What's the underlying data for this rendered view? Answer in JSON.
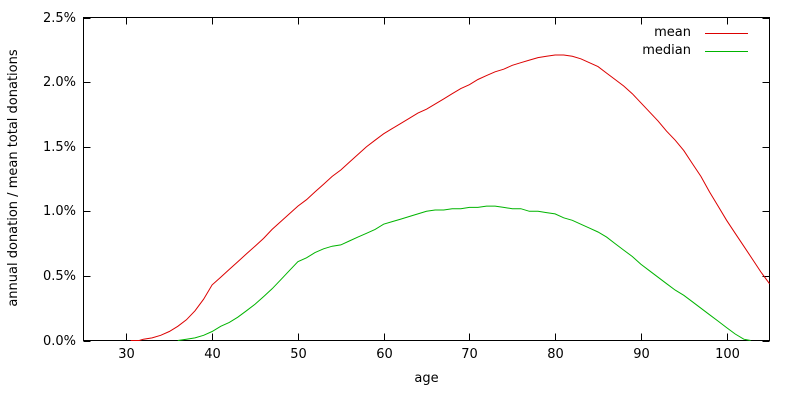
{
  "chart_data": {
    "type": "line",
    "title": "",
    "xlabel": "age",
    "ylabel": "annual donation / mean total donations",
    "xlim": [
      25,
      105
    ],
    "ylim": [
      0,
      2.5
    ],
    "grid": false,
    "legend_position": "top-right-inside",
    "x_tick_values": [
      30,
      40,
      50,
      60,
      70,
      80,
      90,
      100
    ],
    "x_tick_labels": [
      "30",
      "40",
      "50",
      "60",
      "70",
      "80",
      "90",
      "100"
    ],
    "y_tick_values": [
      0,
      0.5,
      1.0,
      1.5,
      2.0,
      2.5
    ],
    "y_tick_labels": [
      "0.0%",
      "0.5%",
      "1.0%",
      "1.5%",
      "2.0%",
      "2.5%"
    ],
    "axis_color": "#000000",
    "series": [
      {
        "name": "mean",
        "color": "#dc0000",
        "points": [
          [
            30.5,
            0.0
          ],
          [
            31.5,
            0.0
          ],
          [
            32,
            0.01
          ],
          [
            33,
            0.02
          ],
          [
            34,
            0.04
          ],
          [
            35,
            0.07
          ],
          [
            36,
            0.11
          ],
          [
            37,
            0.16
          ],
          [
            38,
            0.23
          ],
          [
            39,
            0.32
          ],
          [
            40,
            0.43
          ],
          [
            41,
            0.49
          ],
          [
            42,
            0.55
          ],
          [
            43,
            0.61
          ],
          [
            44,
            0.67
          ],
          [
            45,
            0.73
          ],
          [
            46,
            0.79
          ],
          [
            47,
            0.86
          ],
          [
            48,
            0.92
          ],
          [
            49,
            0.98
          ],
          [
            50,
            1.04
          ],
          [
            51,
            1.09
          ],
          [
            52,
            1.15
          ],
          [
            53,
            1.21
          ],
          [
            54,
            1.27
          ],
          [
            55,
            1.32
          ],
          [
            56,
            1.38
          ],
          [
            57,
            1.44
          ],
          [
            58,
            1.5
          ],
          [
            59,
            1.55
          ],
          [
            60,
            1.6
          ],
          [
            61,
            1.64
          ],
          [
            62,
            1.68
          ],
          [
            63,
            1.72
          ],
          [
            64,
            1.76
          ],
          [
            65,
            1.79
          ],
          [
            66,
            1.83
          ],
          [
            67,
            1.87
          ],
          [
            68,
            1.91
          ],
          [
            69,
            1.95
          ],
          [
            70,
            1.98
          ],
          [
            71,
            2.02
          ],
          [
            72,
            2.05
          ],
          [
            73,
            2.08
          ],
          [
            74,
            2.1
          ],
          [
            75,
            2.13
          ],
          [
            76,
            2.15
          ],
          [
            77,
            2.17
          ],
          [
            78,
            2.19
          ],
          [
            79,
            2.2
          ],
          [
            80,
            2.21
          ],
          [
            81,
            2.21
          ],
          [
            82,
            2.2
          ],
          [
            83,
            2.18
          ],
          [
            84,
            2.15
          ],
          [
            85,
            2.12
          ],
          [
            86,
            2.07
          ],
          [
            87,
            2.02
          ],
          [
            88,
            1.97
          ],
          [
            89,
            1.91
          ],
          [
            90,
            1.84
          ],
          [
            91,
            1.77
          ],
          [
            92,
            1.7
          ],
          [
            93,
            1.62
          ],
          [
            94,
            1.55
          ],
          [
            95,
            1.47
          ],
          [
            96,
            1.37
          ],
          [
            97,
            1.27
          ],
          [
            98,
            1.15
          ],
          [
            99,
            1.04
          ],
          [
            100,
            0.93
          ],
          [
            101,
            0.83
          ],
          [
            102,
            0.73
          ],
          [
            103,
            0.63
          ],
          [
            104,
            0.53
          ],
          [
            105,
            0.44
          ]
        ]
      },
      {
        "name": "median",
        "color": "#00b400",
        "points": [
          [
            36,
            0.0
          ],
          [
            37,
            0.01
          ],
          [
            38,
            0.02
          ],
          [
            39,
            0.04
          ],
          [
            40,
            0.07
          ],
          [
            41,
            0.11
          ],
          [
            42,
            0.14
          ],
          [
            43,
            0.18
          ],
          [
            44,
            0.23
          ],
          [
            45,
            0.28
          ],
          [
            46,
            0.34
          ],
          [
            47,
            0.4
          ],
          [
            48,
            0.47
          ],
          [
            49,
            0.54
          ],
          [
            50,
            0.61
          ],
          [
            51,
            0.64
          ],
          [
            52,
            0.68
          ],
          [
            53,
            0.71
          ],
          [
            54,
            0.73
          ],
          [
            55,
            0.74
          ],
          [
            56,
            0.77
          ],
          [
            57,
            0.8
          ],
          [
            58,
            0.83
          ],
          [
            59,
            0.86
          ],
          [
            60,
            0.9
          ],
          [
            61,
            0.92
          ],
          [
            62,
            0.94
          ],
          [
            63,
            0.96
          ],
          [
            64,
            0.98
          ],
          [
            65,
            1.0
          ],
          [
            66,
            1.01
          ],
          [
            67,
            1.01
          ],
          [
            68,
            1.02
          ],
          [
            69,
            1.02
          ],
          [
            70,
            1.03
          ],
          [
            71,
            1.03
          ],
          [
            72,
            1.04
          ],
          [
            73,
            1.04
          ],
          [
            74,
            1.03
          ],
          [
            75,
            1.02
          ],
          [
            76,
            1.02
          ],
          [
            77,
            1.0
          ],
          [
            78,
            1.0
          ],
          [
            79,
            0.99
          ],
          [
            80,
            0.98
          ],
          [
            81,
            0.95
          ],
          [
            82,
            0.93
          ],
          [
            83,
            0.9
          ],
          [
            84,
            0.87
          ],
          [
            85,
            0.84
          ],
          [
            86,
            0.8
          ],
          [
            87,
            0.75
          ],
          [
            88,
            0.7
          ],
          [
            89,
            0.65
          ],
          [
            90,
            0.59
          ],
          [
            91,
            0.54
          ],
          [
            92,
            0.49
          ],
          [
            93,
            0.44
          ],
          [
            94,
            0.39
          ],
          [
            95,
            0.35
          ],
          [
            96,
            0.3
          ],
          [
            97,
            0.25
          ],
          [
            98,
            0.2
          ],
          [
            99,
            0.15
          ],
          [
            100,
            0.1
          ],
          [
            101,
            0.05
          ],
          [
            102,
            0.01
          ],
          [
            102.8,
            0.0
          ]
        ]
      }
    ]
  }
}
